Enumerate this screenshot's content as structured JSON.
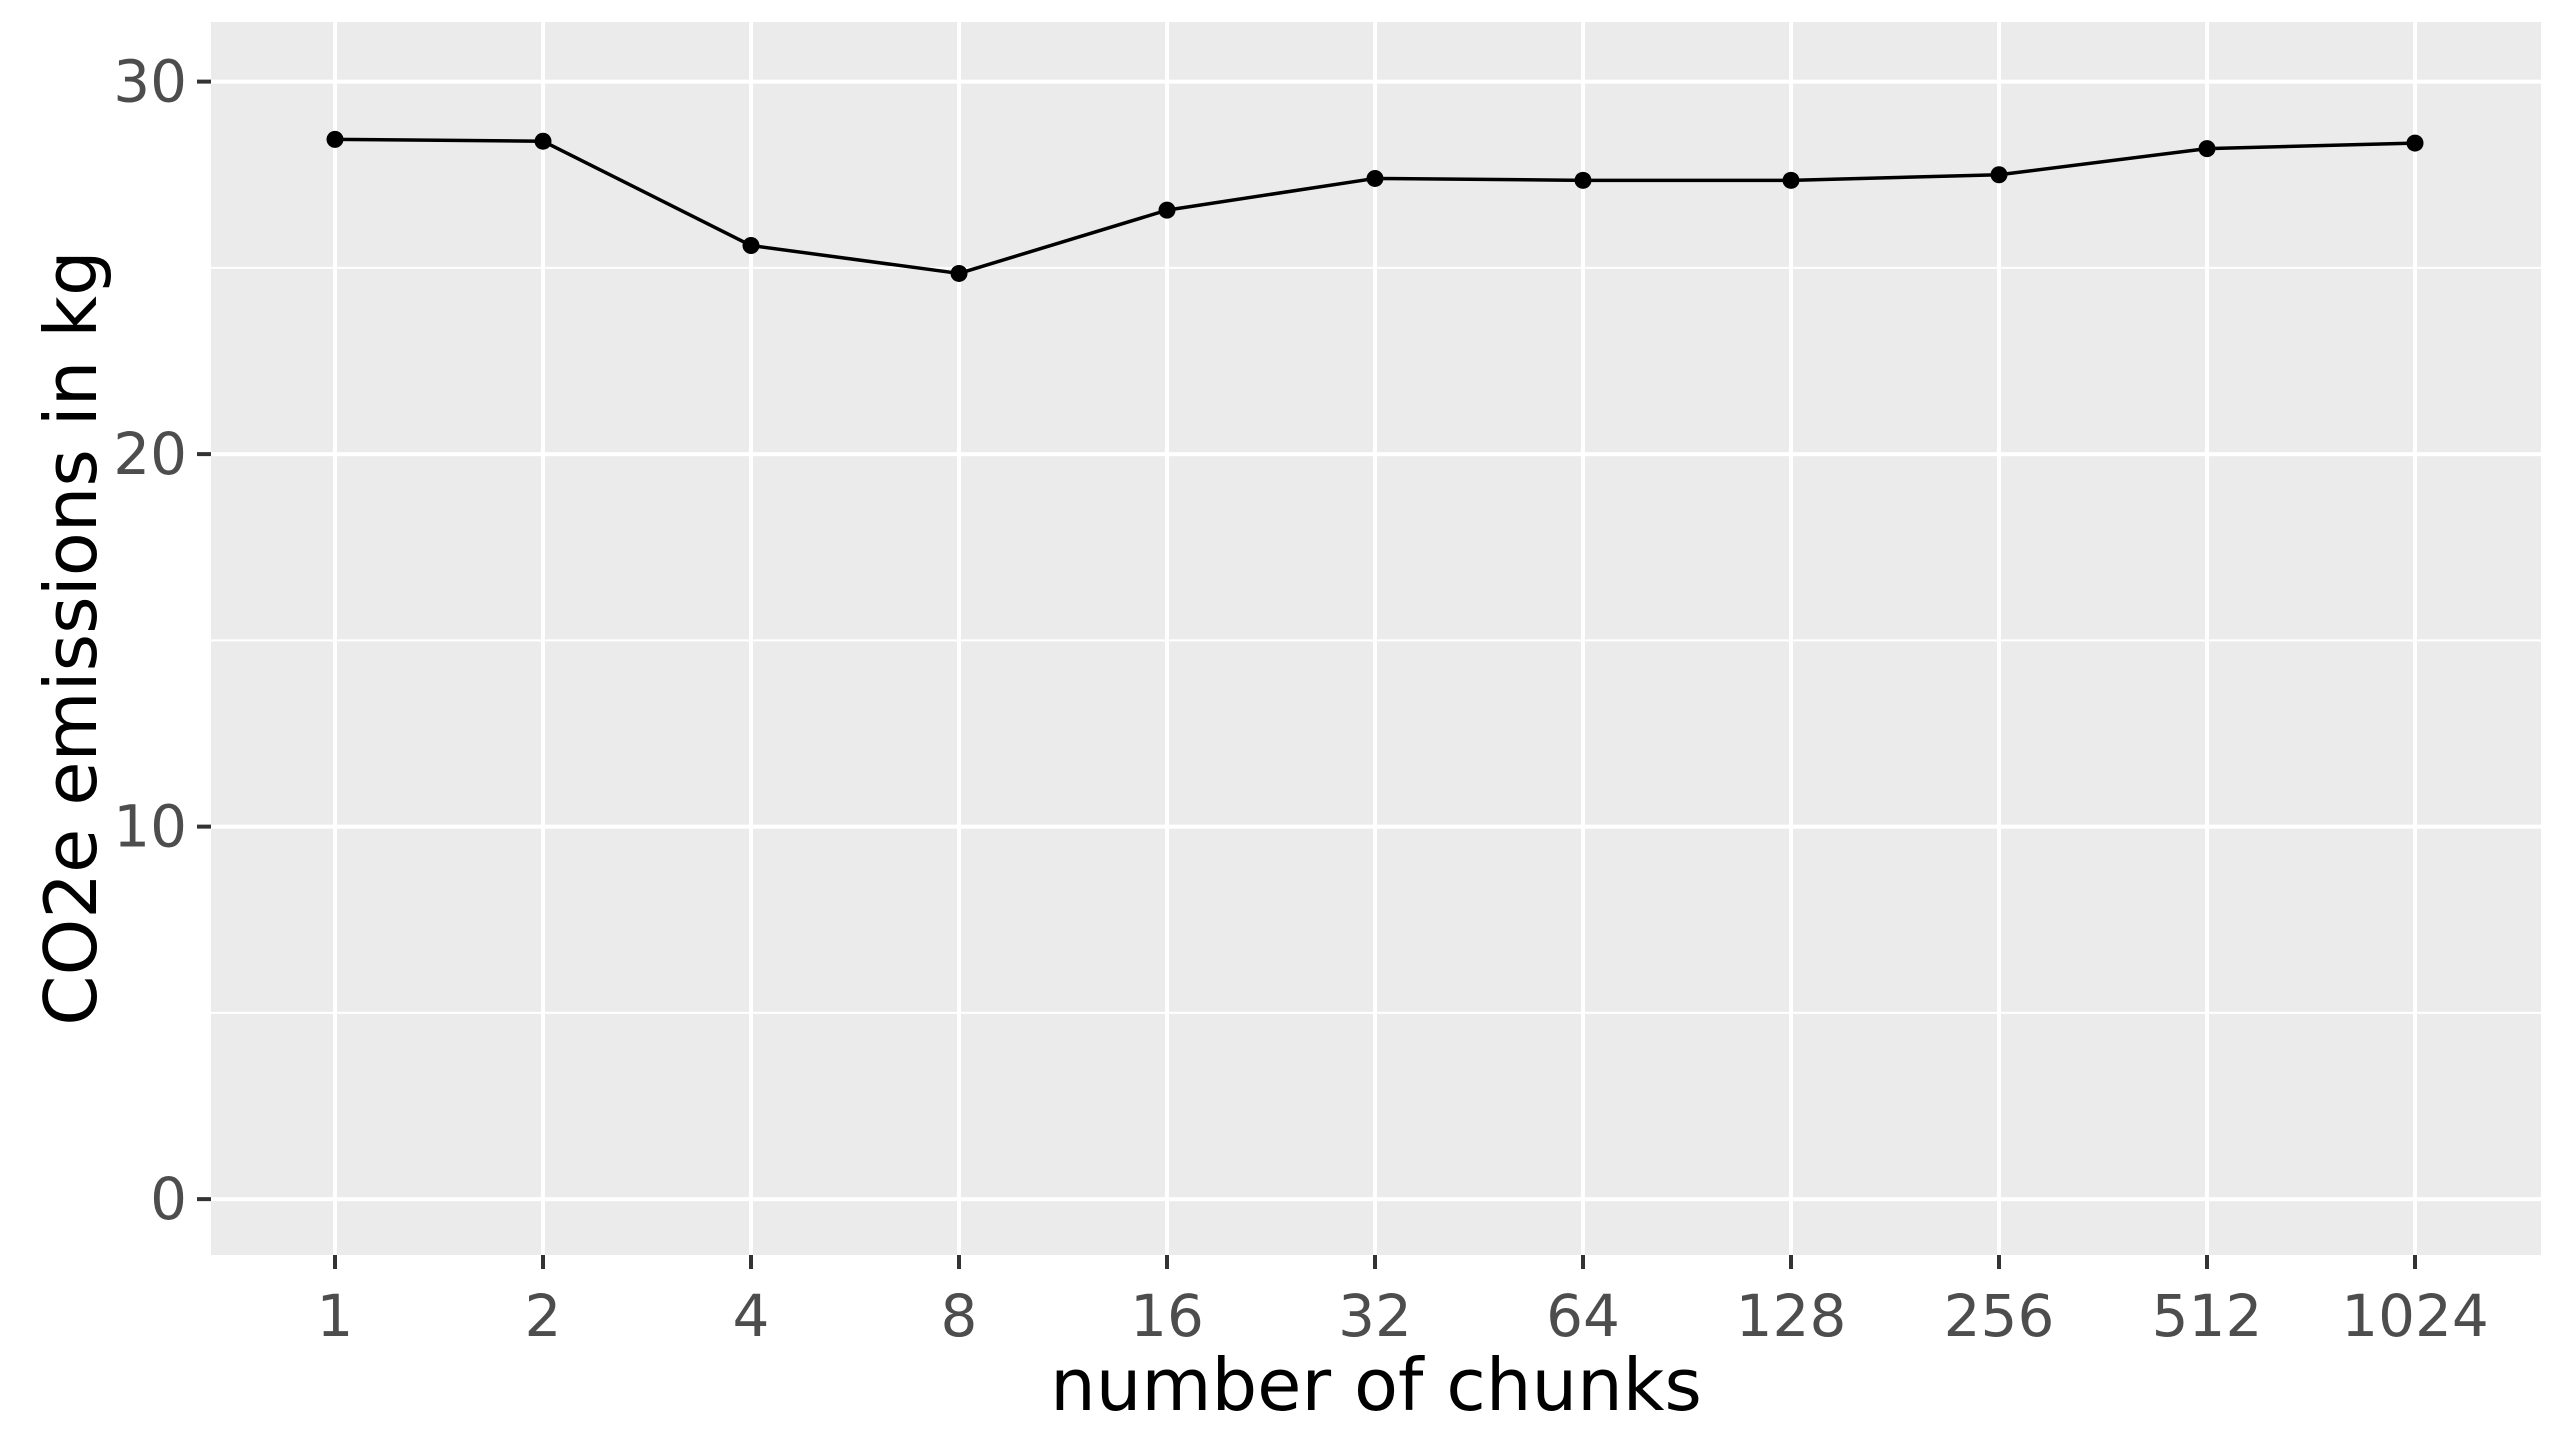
{
  "chart_data": {
    "type": "line",
    "xlabel": "number of chunks",
    "ylabel": "CO2e emissions in kg",
    "x": [
      "1",
      "2",
      "4",
      "8",
      "16",
      "32",
      "64",
      "128",
      "256",
      "512",
      "1024"
    ],
    "y": [
      28.45,
      28.4,
      25.6,
      24.85,
      26.55,
      27.4,
      27.35,
      27.35,
      27.5,
      28.2,
      28.35
    ],
    "ylim": [
      -1.5,
      31.6
    ],
    "yticks": [
      "0",
      "10",
      "20",
      "30"
    ],
    "ytick_values": [
      0,
      10,
      20,
      30
    ],
    "grid": true,
    "legend": "none",
    "colors": {
      "panel_background": "#ebebeb",
      "grid": "#ffffff",
      "line": "#000000",
      "points": "#000000",
      "tick_text": "#4d4d4d"
    }
  }
}
